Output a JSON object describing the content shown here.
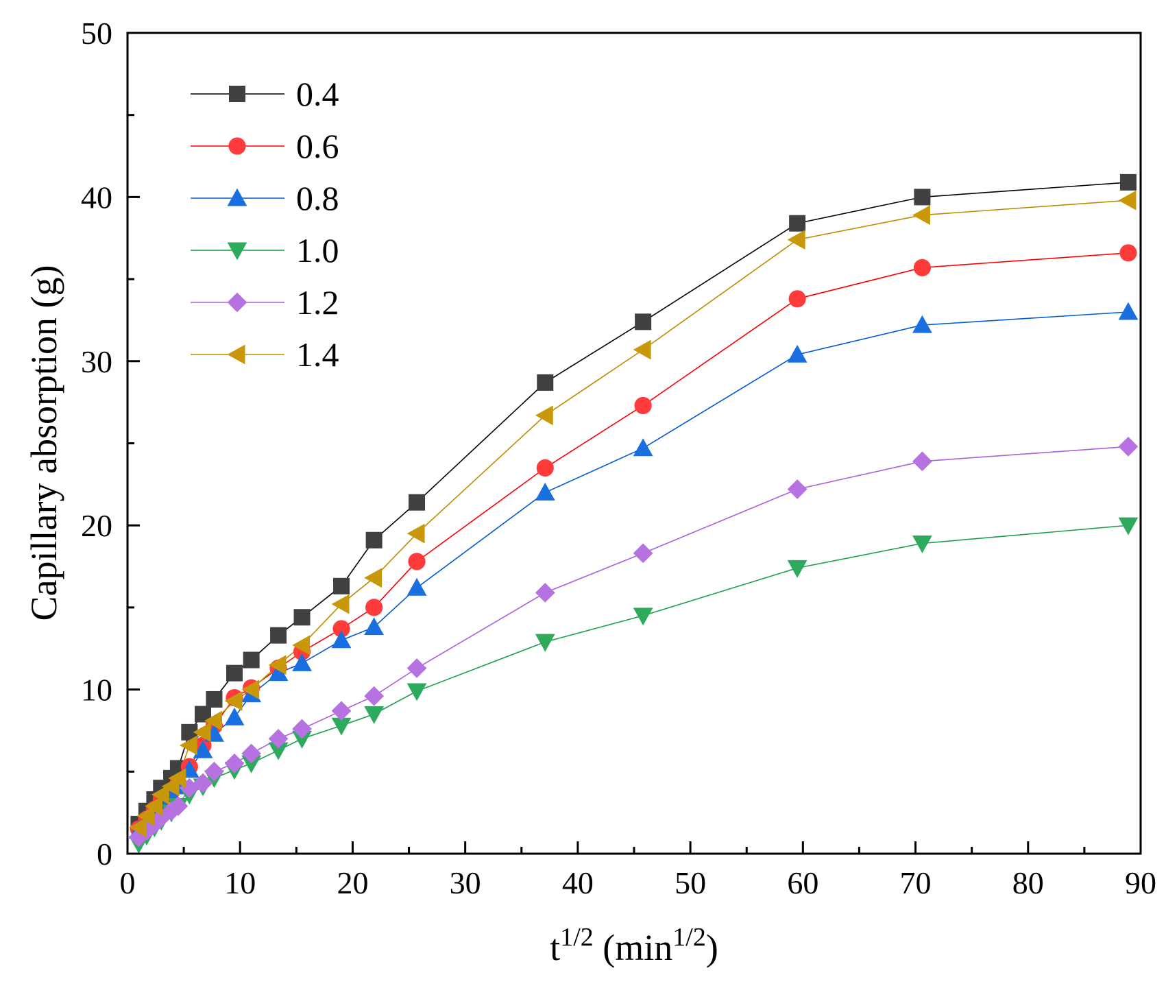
{
  "chart_data": {
    "type": "line",
    "title": "",
    "xlabel": {
      "base": "t",
      "sup": "1/2",
      "mid": " (min",
      "sup2": "1/2",
      "end": ")"
    },
    "ylabel": "Capillary absorption (g)",
    "xlim": [
      0,
      90
    ],
    "ylim": [
      0,
      50
    ],
    "xticks": [
      "0",
      "10",
      "20",
      "30",
      "40",
      "50",
      "60",
      "70",
      "80",
      "90"
    ],
    "yticks": [
      "0",
      "10",
      "20",
      "30",
      "40",
      "50"
    ],
    "grid": false,
    "legend_position": "top-left",
    "x": [
      1,
      1.7,
      2.4,
      3,
      3.9,
      4.5,
      5.5,
      6.7,
      7.7,
      9.5,
      11,
      13.4,
      15.5,
      19,
      21.9,
      25.7,
      37.1,
      45.8,
      59.5,
      70.6,
      88.9
    ],
    "series": [
      {
        "name": "0.4",
        "marker": "square",
        "color": "#404040",
        "line_color": "#000000",
        "values": [
          1.8,
          2.6,
          3.3,
          4,
          4.6,
          5.2,
          7.4,
          8.5,
          9.4,
          11,
          11.8,
          13.3,
          14.4,
          16.3,
          19.1,
          21.4,
          28.7,
          32.4,
          38.4,
          40,
          40.9
        ]
      },
      {
        "name": "0.6",
        "marker": "circle",
        "color": "#ff3b3b",
        "line_color": "#ff0000",
        "values": [
          1.5,
          2.1,
          2.7,
          3.3,
          3.8,
          4.3,
          5.3,
          6.6,
          7.8,
          9.5,
          10.1,
          11.3,
          12.3,
          13.7,
          15,
          17.8,
          23.5,
          27.3,
          33.8,
          35.7,
          36.6
        ]
      },
      {
        "name": "0.8",
        "marker": "triangle-up",
        "color": "#1a6fe0",
        "line_color": "#0059d6",
        "values": [
          1.4,
          2,
          2.5,
          3.1,
          3.6,
          4.1,
          5.1,
          6.3,
          7.3,
          8.3,
          9.7,
          11,
          11.6,
          13,
          13.8,
          16.2,
          22,
          24.7,
          30.4,
          32.2,
          33
        ]
      },
      {
        "name": "1.0",
        "marker": "triangle-down",
        "color": "#2eaa5c",
        "line_color": "#1a9e4c",
        "values": [
          0.6,
          1.1,
          1.6,
          2,
          2.5,
          2.9,
          3.6,
          4.1,
          4.6,
          5.1,
          5.5,
          6.3,
          7,
          7.8,
          8.5,
          9.9,
          12.9,
          14.5,
          17.4,
          18.9,
          20
        ]
      },
      {
        "name": "1.2",
        "marker": "diamond",
        "color": "#b572e0",
        "line_color": "#a960db",
        "values": [
          1,
          1.4,
          1.8,
          2.2,
          2.6,
          2.9,
          4,
          4.3,
          5,
          5.5,
          6.1,
          7,
          7.6,
          8.7,
          9.6,
          11.3,
          15.9,
          18.3,
          22.2,
          23.9,
          24.8
        ]
      },
      {
        "name": "1.4",
        "marker": "triangle-left",
        "color": "#c9980a",
        "line_color": "#bb8d00",
        "values": [
          1.6,
          2.3,
          2.9,
          3.6,
          4.1,
          4.6,
          6.6,
          7.4,
          8.1,
          9.3,
          10,
          11.5,
          12.7,
          15.2,
          16.8,
          19.5,
          26.7,
          30.7,
          37.4,
          38.9,
          39.8
        ]
      }
    ]
  }
}
